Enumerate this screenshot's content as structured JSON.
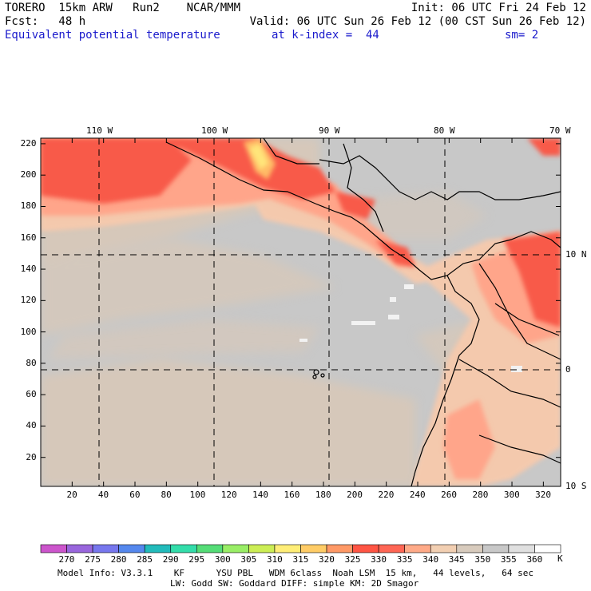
{
  "header": {
    "model": "TORERO  15km ARW   Run2    NCAR/MMM",
    "init": "Init: 06 UTC Fri 24 Feb 12",
    "fcst": "Fcst:   48 h",
    "valid": "Valid: 06 UTC Sun 26 Feb 12 (00 CST Sun 26 Feb 12)",
    "field": "Equivalent potential temperature",
    "level": "at k-index =  44",
    "smooth": "sm= 2"
  },
  "axes": {
    "longitudes": [
      "110 W",
      "100 W",
      "90 W",
      "80 W",
      "70 W"
    ],
    "latitudes": [
      "10 N",
      "0",
      "10 S"
    ],
    "x_ticks": [
      "20",
      "40",
      "60",
      "80",
      "100",
      "120",
      "140",
      "160",
      "180",
      "200",
      "220",
      "240",
      "260",
      "280",
      "300",
      "320"
    ],
    "y_ticks": [
      "220",
      "200",
      "180",
      "160",
      "140",
      "120",
      "100",
      "80",
      "60",
      "40",
      "20"
    ]
  },
  "legend": {
    "unit": "K",
    "labels": [
      "270",
      "275",
      "280",
      "285",
      "290",
      "295",
      "300",
      "305",
      "310",
      "315",
      "320",
      "325",
      "330",
      "335",
      "340",
      "345",
      "350",
      "355",
      "360"
    ],
    "colors": [
      "#cc55cc",
      "#9966dd",
      "#7777ee",
      "#5588ee",
      "#22bbbb",
      "#33ddaa",
      "#55dd77",
      "#99ee66",
      "#ccee55",
      "#ffee77",
      "#ffcc66",
      "#ff9966",
      "#ff5544",
      "#ff6655",
      "#ffaa88",
      "#f2cfb2",
      "#d8cbbd",
      "#c8c8c8",
      "#e0e0e0",
      "#ffffff"
    ]
  },
  "footer": {
    "line1": "Model Info: V3.3.1    KF      YSU PBL   WDM 6class  Noah LSM  15 km,   44 levels,   64 sec",
    "line2": "LW: Godd SW: Goddard DIFF: simple KM: 2D Smagor"
  }
}
